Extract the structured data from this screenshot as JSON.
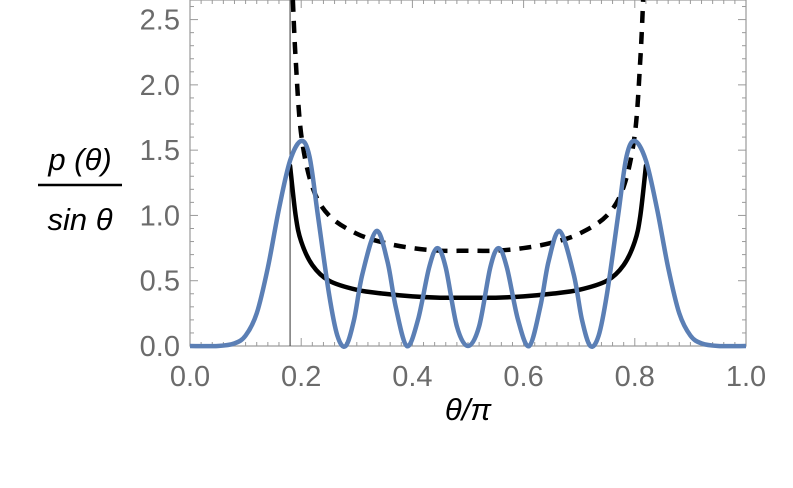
{
  "chart_data": {
    "type": "line",
    "xlabel": "θ/π",
    "ylabel_numerator": "p (θ)",
    "ylabel_denominator": "sin θ",
    "xlim": [
      0,
      1
    ],
    "ylim": [
      0,
      2.65
    ],
    "x_ticks": [
      "0.0",
      "0.2",
      "0.4",
      "0.6",
      "0.8",
      "1.0"
    ],
    "y_ticks": [
      "0.0",
      "0.5",
      "1.0",
      "1.5",
      "2.0",
      "2.5"
    ],
    "vertical_marker_x": 0.18,
    "grid": false,
    "frame": true,
    "series": [
      {
        "style": "dashed",
        "color": "#000000",
        "x": [
          0.185,
          0.19,
          0.2,
          0.22,
          0.25,
          0.3,
          0.35,
          0.4,
          0.45,
          0.5,
          0.55,
          0.6,
          0.65,
          0.7,
          0.75,
          0.78,
          0.8,
          0.81,
          0.815
        ],
        "y": [
          2.65,
          2.2,
          1.62,
          1.22,
          1.0,
          0.86,
          0.79,
          0.75,
          0.73,
          0.73,
          0.73,
          0.75,
          0.79,
          0.86,
          1.0,
          1.22,
          1.62,
          2.2,
          2.65
        ]
      },
      {
        "style": "solid",
        "color": "#000000",
        "x": [
          0.18,
          0.19,
          0.2,
          0.22,
          0.25,
          0.3,
          0.35,
          0.4,
          0.45,
          0.5,
          0.55,
          0.6,
          0.65,
          0.7,
          0.75,
          0.78,
          0.8,
          0.81,
          0.82
        ],
        "y": [
          1.38,
          1.0,
          0.8,
          0.62,
          0.5,
          0.43,
          0.4,
          0.38,
          0.37,
          0.37,
          0.37,
          0.38,
          0.4,
          0.43,
          0.5,
          0.62,
          0.8,
          1.0,
          1.38
        ]
      },
      {
        "style": "solid",
        "color": "#5b7fb5",
        "x": [
          0.0,
          0.05,
          0.08,
          0.1,
          0.12,
          0.14,
          0.16,
          0.18,
          0.2,
          0.215,
          0.23,
          0.25,
          0.265,
          0.28,
          0.295,
          0.31,
          0.335,
          0.355,
          0.37,
          0.39,
          0.41,
          0.43,
          0.445,
          0.46,
          0.48,
          0.5,
          0.52,
          0.54,
          0.555,
          0.57,
          0.59,
          0.61,
          0.63,
          0.645,
          0.665,
          0.69,
          0.705,
          0.72,
          0.735,
          0.75,
          0.77,
          0.785,
          0.8,
          0.82,
          0.84,
          0.86,
          0.88,
          0.9,
          0.92,
          0.95,
          1.0
        ],
        "y": [
          0.0,
          0.0,
          0.02,
          0.08,
          0.25,
          0.6,
          1.05,
          1.42,
          1.57,
          1.45,
          1.0,
          0.4,
          0.08,
          0.0,
          0.2,
          0.55,
          0.88,
          0.65,
          0.3,
          0.0,
          0.2,
          0.6,
          0.75,
          0.6,
          0.15,
          0.0,
          0.15,
          0.6,
          0.75,
          0.6,
          0.2,
          0.0,
          0.3,
          0.65,
          0.88,
          0.55,
          0.2,
          0.0,
          0.08,
          0.4,
          1.0,
          1.45,
          1.57,
          1.42,
          1.05,
          0.6,
          0.25,
          0.08,
          0.02,
          0.0,
          0.0
        ]
      }
    ]
  }
}
